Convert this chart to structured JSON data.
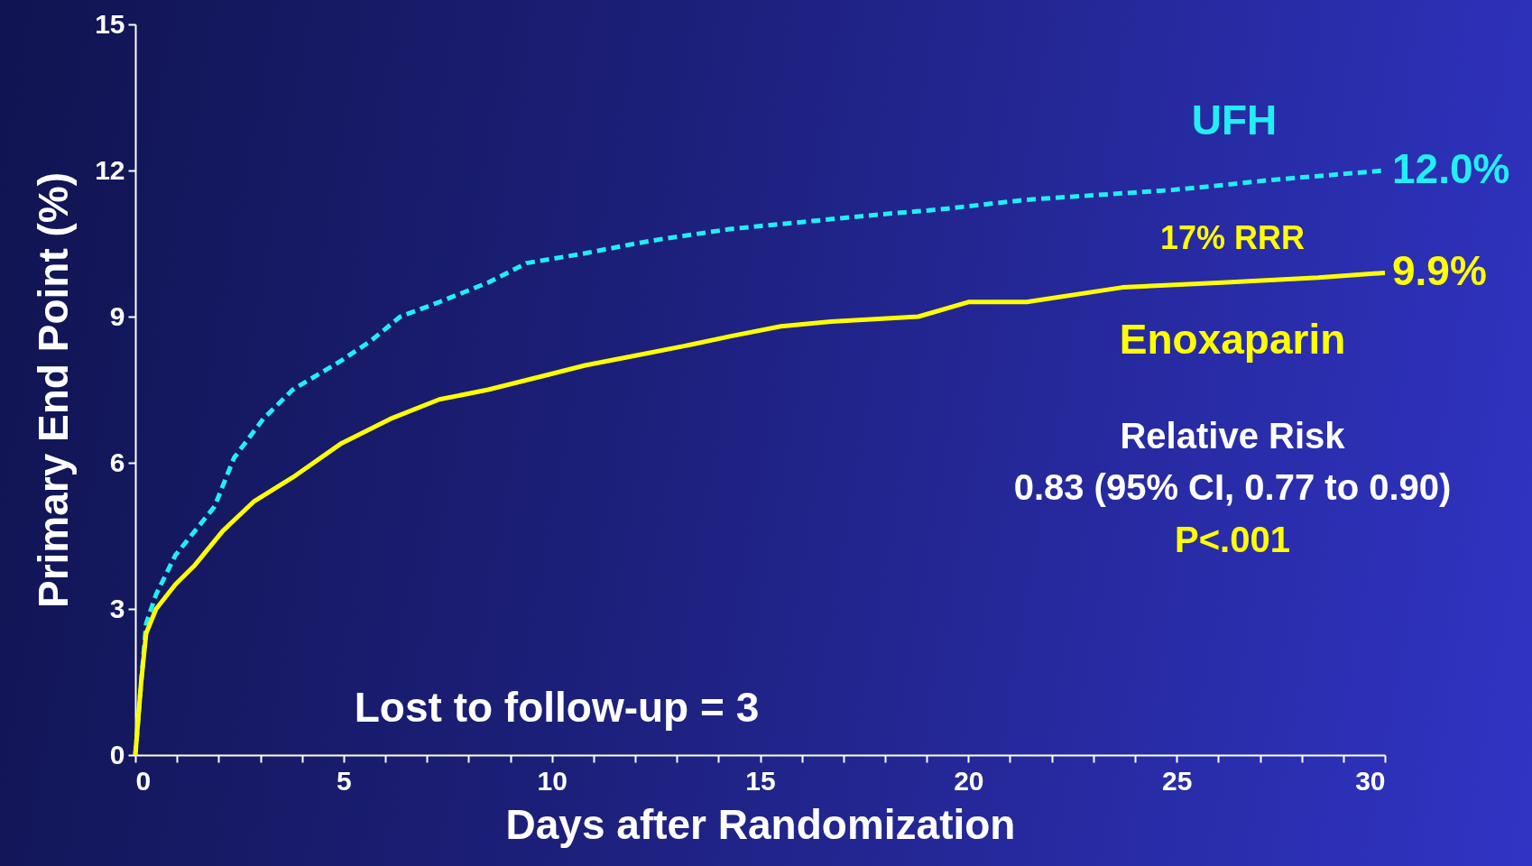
{
  "chart_data": {
    "type": "line",
    "xlabel": "Days after Randomization",
    "ylabel": "Primary End Point (%)",
    "xlim": [
      0,
      30
    ],
    "ylim": [
      0,
      15
    ],
    "xticks": [
      0,
      {
        "value": 1,
        "label": null
      },
      {
        "value": 2,
        "label": null
      },
      {
        "value": 3,
        "label": null
      },
      {
        "value": 4,
        "label": null
      },
      5,
      {
        "value": 6,
        "label": null
      },
      {
        "value": 7,
        "label": null
      },
      {
        "value": 8,
        "label": null
      },
      {
        "value": 9,
        "label": null
      },
      10,
      {
        "value": 11,
        "label": null
      },
      {
        "value": 12,
        "label": null
      },
      {
        "value": 13,
        "label": null
      },
      {
        "value": 14,
        "label": null
      },
      15,
      {
        "value": 16,
        "label": null
      },
      {
        "value": 17,
        "label": null
      },
      {
        "value": 18,
        "label": null
      },
      {
        "value": 19,
        "label": null
      },
      20,
      {
        "value": 21,
        "label": null
      },
      {
        "value": 22,
        "label": null
      },
      {
        "value": 23,
        "label": null
      },
      {
        "value": 24,
        "label": null
      },
      25,
      {
        "value": 26,
        "label": null
      },
      {
        "value": 27,
        "label": null
      },
      {
        "value": 28,
        "label": null
      },
      {
        "value": 29,
        "label": null
      },
      30
    ],
    "yticks": [
      0,
      3,
      6,
      9,
      12,
      15
    ],
    "grid": false,
    "series": [
      {
        "name": "UFH",
        "color": "#22eef4",
        "line_style": "dashed",
        "x": [
          0,
          0.14,
          0.26,
          0.5,
          0.96,
          1.9,
          2.37,
          3.07,
          3.78,
          4.95,
          5.65,
          6.36,
          7.3,
          8.47,
          9.4,
          10.8,
          12,
          12.7,
          14.3,
          15.5,
          17.9,
          19.3,
          21.4,
          24.9,
          26.1,
          27.2,
          30
        ],
        "values": [
          0,
          1.5,
          2.7,
          3.3,
          4.1,
          5.1,
          6.1,
          6.9,
          7.5,
          8.1,
          8.5,
          9.0,
          9.3,
          9.7,
          10.1,
          10.3,
          10.5,
          10.6,
          10.8,
          10.9,
          11.1,
          11.2,
          11.4,
          11.6,
          11.7,
          11.8,
          12.0
        ]
      },
      {
        "name": "Enoxaparin",
        "color": "#ffff00",
        "line_style": "solid",
        "x": [
          0,
          0.14,
          0.26,
          0.5,
          0.96,
          1.43,
          2.1,
          2.84,
          3.78,
          4.95,
          6.12,
          7.3,
          8.47,
          9.88,
          10.8,
          12,
          13.2,
          14.3,
          15.5,
          16.7,
          18.8,
          20,
          21.4,
          23.7,
          26.1,
          28.4,
          30
        ],
        "values": [
          0,
          1.5,
          2.5,
          3.0,
          3.5,
          3.9,
          4.6,
          5.2,
          5.7,
          6.4,
          6.9,
          7.3,
          7.5,
          7.8,
          8.0,
          8.2,
          8.4,
          8.6,
          8.8,
          8.9,
          9.0,
          9.3,
          9.3,
          9.6,
          9.7,
          9.8,
          9.9
        ]
      }
    ],
    "annotations": [
      {
        "text": "12.0%",
        "x": 30,
        "y": 12.0
      },
      {
        "text": "9.9%",
        "x": 30,
        "y": 9.9
      },
      "17% RRR",
      "Relative Risk",
      "0.83 (95% CI, 0.77 to 0.90)",
      "P<.001",
      "Lost to follow-up = 3"
    ]
  }
}
